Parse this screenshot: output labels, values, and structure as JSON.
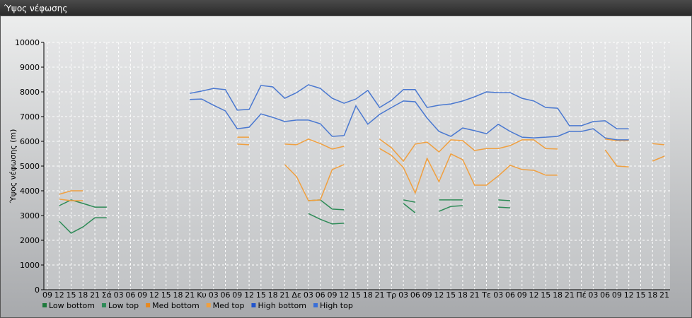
{
  "chart_data": {
    "type": "line",
    "title": "Ύψος νέφωσης",
    "y_label": "Ύψος νέφωσης (m)",
    "categories": [
      "09",
      "12",
      "15",
      "18",
      "21",
      "Σά",
      "03",
      "06",
      "09",
      "12",
      "15",
      "18",
      "21",
      "Κυ",
      "03",
      "06",
      "09",
      "12",
      "15",
      "18",
      "21",
      "Δε",
      "03",
      "06",
      "09",
      "12",
      "15",
      "18",
      "21",
      "Τρ",
      "03",
      "06",
      "09",
      "12",
      "15",
      "18",
      "21",
      "Τε",
      "03",
      "06",
      "09",
      "12",
      "15",
      "18",
      "21",
      "Πέ",
      "03",
      "06",
      "09",
      "12",
      "15",
      "18",
      "21"
    ],
    "ylim": [
      0,
      10000
    ],
    "yticks": [
      0,
      1000,
      2000,
      3000,
      4000,
      5000,
      6000,
      7000,
      8000,
      9000,
      10000
    ],
    "grid": true,
    "legend": "bottom-left",
    "series": [
      {
        "name": "Low bottom",
        "color": "#1e7a3c",
        "line_color": "#2e8b57",
        "values": [
          null,
          2770,
          2290,
          2540,
          2910,
          2910,
          null,
          null,
          null,
          null,
          null,
          null,
          null,
          null,
          null,
          null,
          null,
          null,
          null,
          null,
          null,
          null,
          3080,
          2850,
          2660,
          2690,
          null,
          null,
          null,
          null,
          3490,
          3110,
          null,
          3170,
          3370,
          3400,
          null,
          null,
          3340,
          3310,
          null,
          null,
          null,
          null,
          null,
          null,
          null,
          null,
          null,
          null,
          null,
          null,
          null
        ]
      },
      {
        "name": "Low top",
        "color": "#2e8b57",
        "line_color": "#2e8b57",
        "values": [
          null,
          3400,
          3630,
          3490,
          3340,
          3340,
          null,
          null,
          null,
          null,
          null,
          null,
          null,
          null,
          null,
          null,
          null,
          null,
          null,
          null,
          null,
          null,
          3600,
          3630,
          3260,
          3230,
          null,
          null,
          null,
          null,
          3630,
          3540,
          null,
          3630,
          3630,
          3630,
          null,
          null,
          3630,
          3600,
          null,
          null,
          null,
          null,
          null,
          null,
          null,
          null,
          null,
          null,
          null,
          null,
          null
        ]
      },
      {
        "name": "Med bottom",
        "color": "#e8891e",
        "line_color": "#f0a040",
        "values": [
          null,
          3660,
          3600,
          3600,
          null,
          null,
          null,
          null,
          null,
          null,
          null,
          null,
          null,
          null,
          null,
          null,
          5890,
          5860,
          null,
          null,
          5060,
          4570,
          3600,
          3630,
          4860,
          5060,
          null,
          null,
          5710,
          5430,
          4940,
          3910,
          5310,
          4370,
          5490,
          5260,
          4230,
          4230,
          4600,
          5030,
          4860,
          4830,
          4630,
          4630,
          null,
          null,
          null,
          5660,
          5000,
          4970,
          null,
          5200,
          5400
        ]
      },
      {
        "name": "Med top",
        "color": "#f0a040",
        "line_color": "#f0a040",
        "values": [
          null,
          3860,
          4000,
          4000,
          null,
          null,
          null,
          null,
          null,
          null,
          null,
          null,
          null,
          null,
          null,
          null,
          6170,
          6170,
          null,
          null,
          5890,
          5860,
          6090,
          5910,
          5690,
          5800,
          null,
          null,
          6090,
          5740,
          5200,
          5890,
          5970,
          5570,
          6060,
          6030,
          5630,
          5710,
          5710,
          5830,
          6060,
          6060,
          5710,
          5690,
          null,
          null,
          null,
          6090,
          6030,
          6030,
          null,
          5910,
          5860
        ]
      },
      {
        "name": "High bottom",
        "color": "#2255cc",
        "line_color": "#4a78d0",
        "values": [
          null,
          null,
          null,
          null,
          null,
          null,
          null,
          null,
          null,
          null,
          null,
          null,
          7690,
          7710,
          7460,
          7230,
          6510,
          6570,
          7110,
          6970,
          6800,
          6860,
          6860,
          6710,
          6200,
          6230,
          7430,
          6690,
          7090,
          7370,
          7630,
          7600,
          6940,
          6400,
          6200,
          6540,
          6430,
          6310,
          6690,
          6400,
          6170,
          6140,
          6170,
          6200,
          6400,
          6400,
          6510,
          6140,
          6060,
          6060,
          null,
          null,
          null
        ]
      },
      {
        "name": "High top",
        "color": "#3a6fd8",
        "line_color": "#4a78d0",
        "values": [
          null,
          null,
          null,
          null,
          null,
          null,
          null,
          null,
          null,
          null,
          null,
          null,
          7940,
          8030,
          8140,
          8090,
          7260,
          7290,
          8260,
          8200,
          7740,
          7970,
          8290,
          8140,
          7740,
          7540,
          7710,
          8060,
          7370,
          7660,
          8090,
          8090,
          7370,
          7460,
          7510,
          7630,
          7800,
          8000,
          7970,
          7970,
          7740,
          7630,
          7370,
          7340,
          6630,
          6630,
          6800,
          6830,
          6510,
          6510,
          null,
          null,
          null
        ]
      }
    ]
  }
}
